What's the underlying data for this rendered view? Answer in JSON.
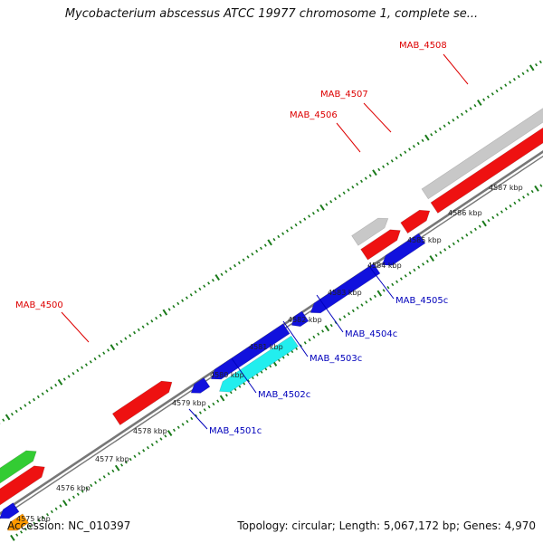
{
  "title": "Mycobacterium abscessus ATCC 19977 chromosome 1, complete se...",
  "footer": {
    "accession": "Accession: NC_010397",
    "summary": "Topology: circular; Length: 5,067,172 bp; Genes: 4,970"
  },
  "colors": {
    "forward_gene": "#ee1111",
    "forward_pseudo": "#c8c8c8",
    "reverse_gene": "#1111dd",
    "reverse_highlight": "#22eeee",
    "green_feature": "#33cc33",
    "orange_feature": "#ff9900",
    "backbone": "#777777",
    "ticks": "#1a7a1a",
    "forward_label": "#dd0000",
    "reverse_label": "#0000bb"
  },
  "ticks": [
    {
      "label": "4575 kbp"
    },
    {
      "label": "4576 kbp"
    },
    {
      "label": "4577 kbp"
    },
    {
      "label": "4578 kbp"
    },
    {
      "label": "4579 kbp"
    },
    {
      "label": "4580 kbp"
    },
    {
      "label": "4581 kbp"
    },
    {
      "label": "4582 kbp"
    },
    {
      "label": "4583 kbp"
    },
    {
      "label": "4584 kbp"
    },
    {
      "label": "4585 kbp"
    },
    {
      "label": "4586 kbp"
    },
    {
      "label": "4587 kbp"
    }
  ],
  "genes_forward": [
    {
      "label": "MAB_4500"
    },
    {
      "label": "MAB_4506"
    },
    {
      "label": "MAB_4507"
    },
    {
      "label": "MAB_4508"
    }
  ],
  "genes_reverse": [
    {
      "label": "MAB_4501c"
    },
    {
      "label": "MAB_4502c"
    },
    {
      "label": "MAB_4503c"
    },
    {
      "label": "MAB_4504c"
    },
    {
      "label": "MAB_4505c"
    }
  ]
}
